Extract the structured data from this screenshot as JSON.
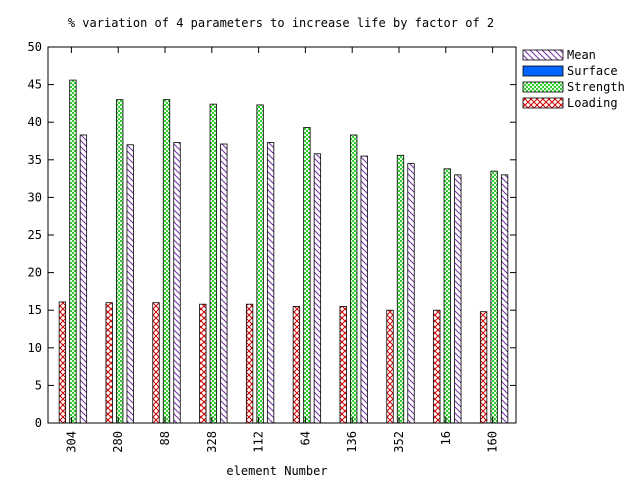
{
  "chart_data": {
    "type": "bar",
    "title": "% variation of 4 parameters to increase life by factor of 2",
    "xlabel": "element Number",
    "ylabel": "",
    "ylim": [
      0,
      50
    ],
    "yticks": [
      0,
      5,
      10,
      15,
      20,
      25,
      30,
      35,
      40,
      45,
      50
    ],
    "grid": false,
    "legend_position": "top-right, outside plot",
    "categories": [
      "304",
      "280",
      "88",
      "328",
      "112",
      "64",
      "136",
      "352",
      "16",
      "160"
    ],
    "series": [
      {
        "name": "Mean",
        "pattern": "diagonal-hatch",
        "color": "#7030a0",
        "values": [
          38.3,
          37.0,
          37.3,
          37.1,
          37.3,
          35.8,
          35.5,
          34.5,
          33.0,
          33.0
        ]
      },
      {
        "name": "Surface",
        "pattern": "solid",
        "color": "#0066ff",
        "values": [
          0,
          0,
          0,
          0,
          0,
          0,
          0,
          0,
          0,
          0
        ]
      },
      {
        "name": "Strength",
        "pattern": "fine-checker",
        "color": "#33cc33",
        "values": [
          45.6,
          43.0,
          43.0,
          42.4,
          42.3,
          39.3,
          38.3,
          35.6,
          33.8,
          33.5
        ]
      },
      {
        "name": "Loading",
        "pattern": "cross-hatch",
        "color": "#cc0000",
        "values": [
          16.1,
          16.0,
          16.0,
          15.8,
          15.8,
          15.5,
          15.5,
          15.0,
          15.0,
          14.8
        ]
      }
    ]
  }
}
